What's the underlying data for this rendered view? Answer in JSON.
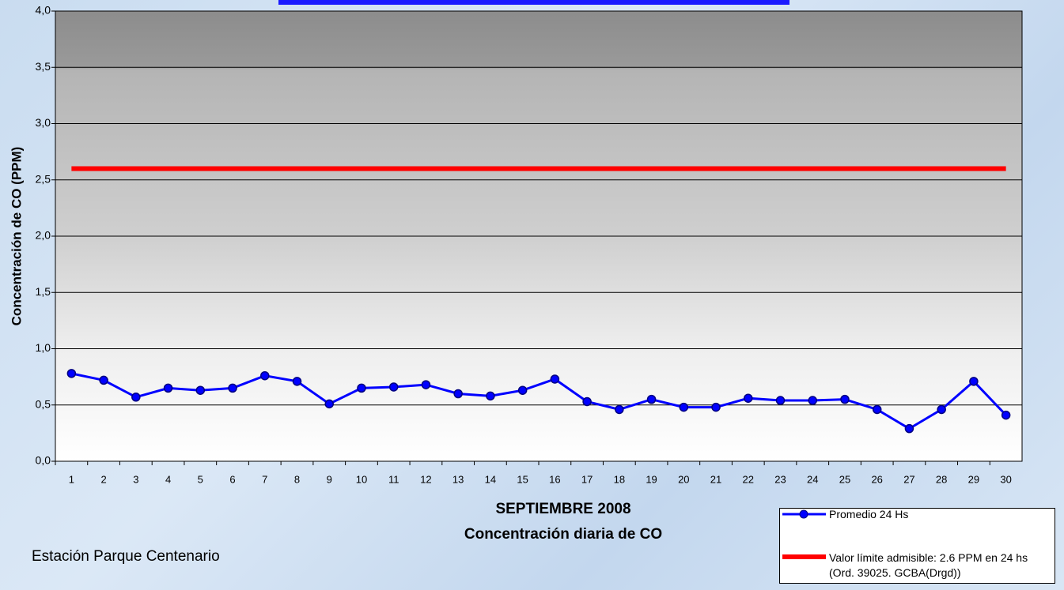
{
  "chart_data": {
    "type": "line",
    "title": "SEPTIEMBRE 2008",
    "subtitle": "Concentración diaria de CO",
    "y_label": "Concentración de CO (PPM)",
    "annotations": [
      "Estación Parque Centenario"
    ],
    "categories": [
      "1",
      "2",
      "3",
      "4",
      "5",
      "6",
      "7",
      "8",
      "9",
      "10",
      "11",
      "12",
      "13",
      "14",
      "15",
      "16",
      "17",
      "18",
      "19",
      "20",
      "21",
      "22",
      "23",
      "24",
      "25",
      "26",
      "27",
      "28",
      "29",
      "30"
    ],
    "series": [
      {
        "name": "Promedio 24 Hs",
        "color": "#0000ff",
        "marker": true,
        "values": [
          0.78,
          0.72,
          0.57,
          0.65,
          0.63,
          0.65,
          0.76,
          0.71,
          0.51,
          0.65,
          0.66,
          0.68,
          0.6,
          0.58,
          0.63,
          0.73,
          0.53,
          0.46,
          0.55,
          0.48,
          0.48,
          0.56,
          0.54,
          0.54,
          0.55,
          0.46,
          0.29,
          0.46,
          0.71,
          0.41
        ]
      },
      {
        "name": "Valor límite admisible: 2.6 PPM en 24 hs (Ord. 39025. GCBA(Drgd))",
        "color": "#ff0000",
        "marker": false,
        "values": [
          2.6,
          2.6,
          2.6,
          2.6,
          2.6,
          2.6,
          2.6,
          2.6,
          2.6,
          2.6,
          2.6,
          2.6,
          2.6,
          2.6,
          2.6,
          2.6,
          2.6,
          2.6,
          2.6,
          2.6,
          2.6,
          2.6,
          2.6,
          2.6,
          2.6,
          2.6,
          2.6,
          2.6,
          2.6,
          2.6
        ]
      }
    ],
    "ylim": [
      0,
      4
    ],
    "yticks": [
      {
        "value": 0,
        "label": "0,0"
      },
      {
        "value": 0.5,
        "label": "0,5"
      },
      {
        "value": 1,
        "label": "1,0"
      },
      {
        "value": 1.5,
        "label": "1,5"
      },
      {
        "value": 2,
        "label": "2,0"
      },
      {
        "value": 2.5,
        "label": "2,5"
      },
      {
        "value": 3,
        "label": "3,0"
      },
      {
        "value": 3.5,
        "label": "3,5"
      },
      {
        "value": 4,
        "label": "4,0"
      }
    ],
    "grid": true
  }
}
